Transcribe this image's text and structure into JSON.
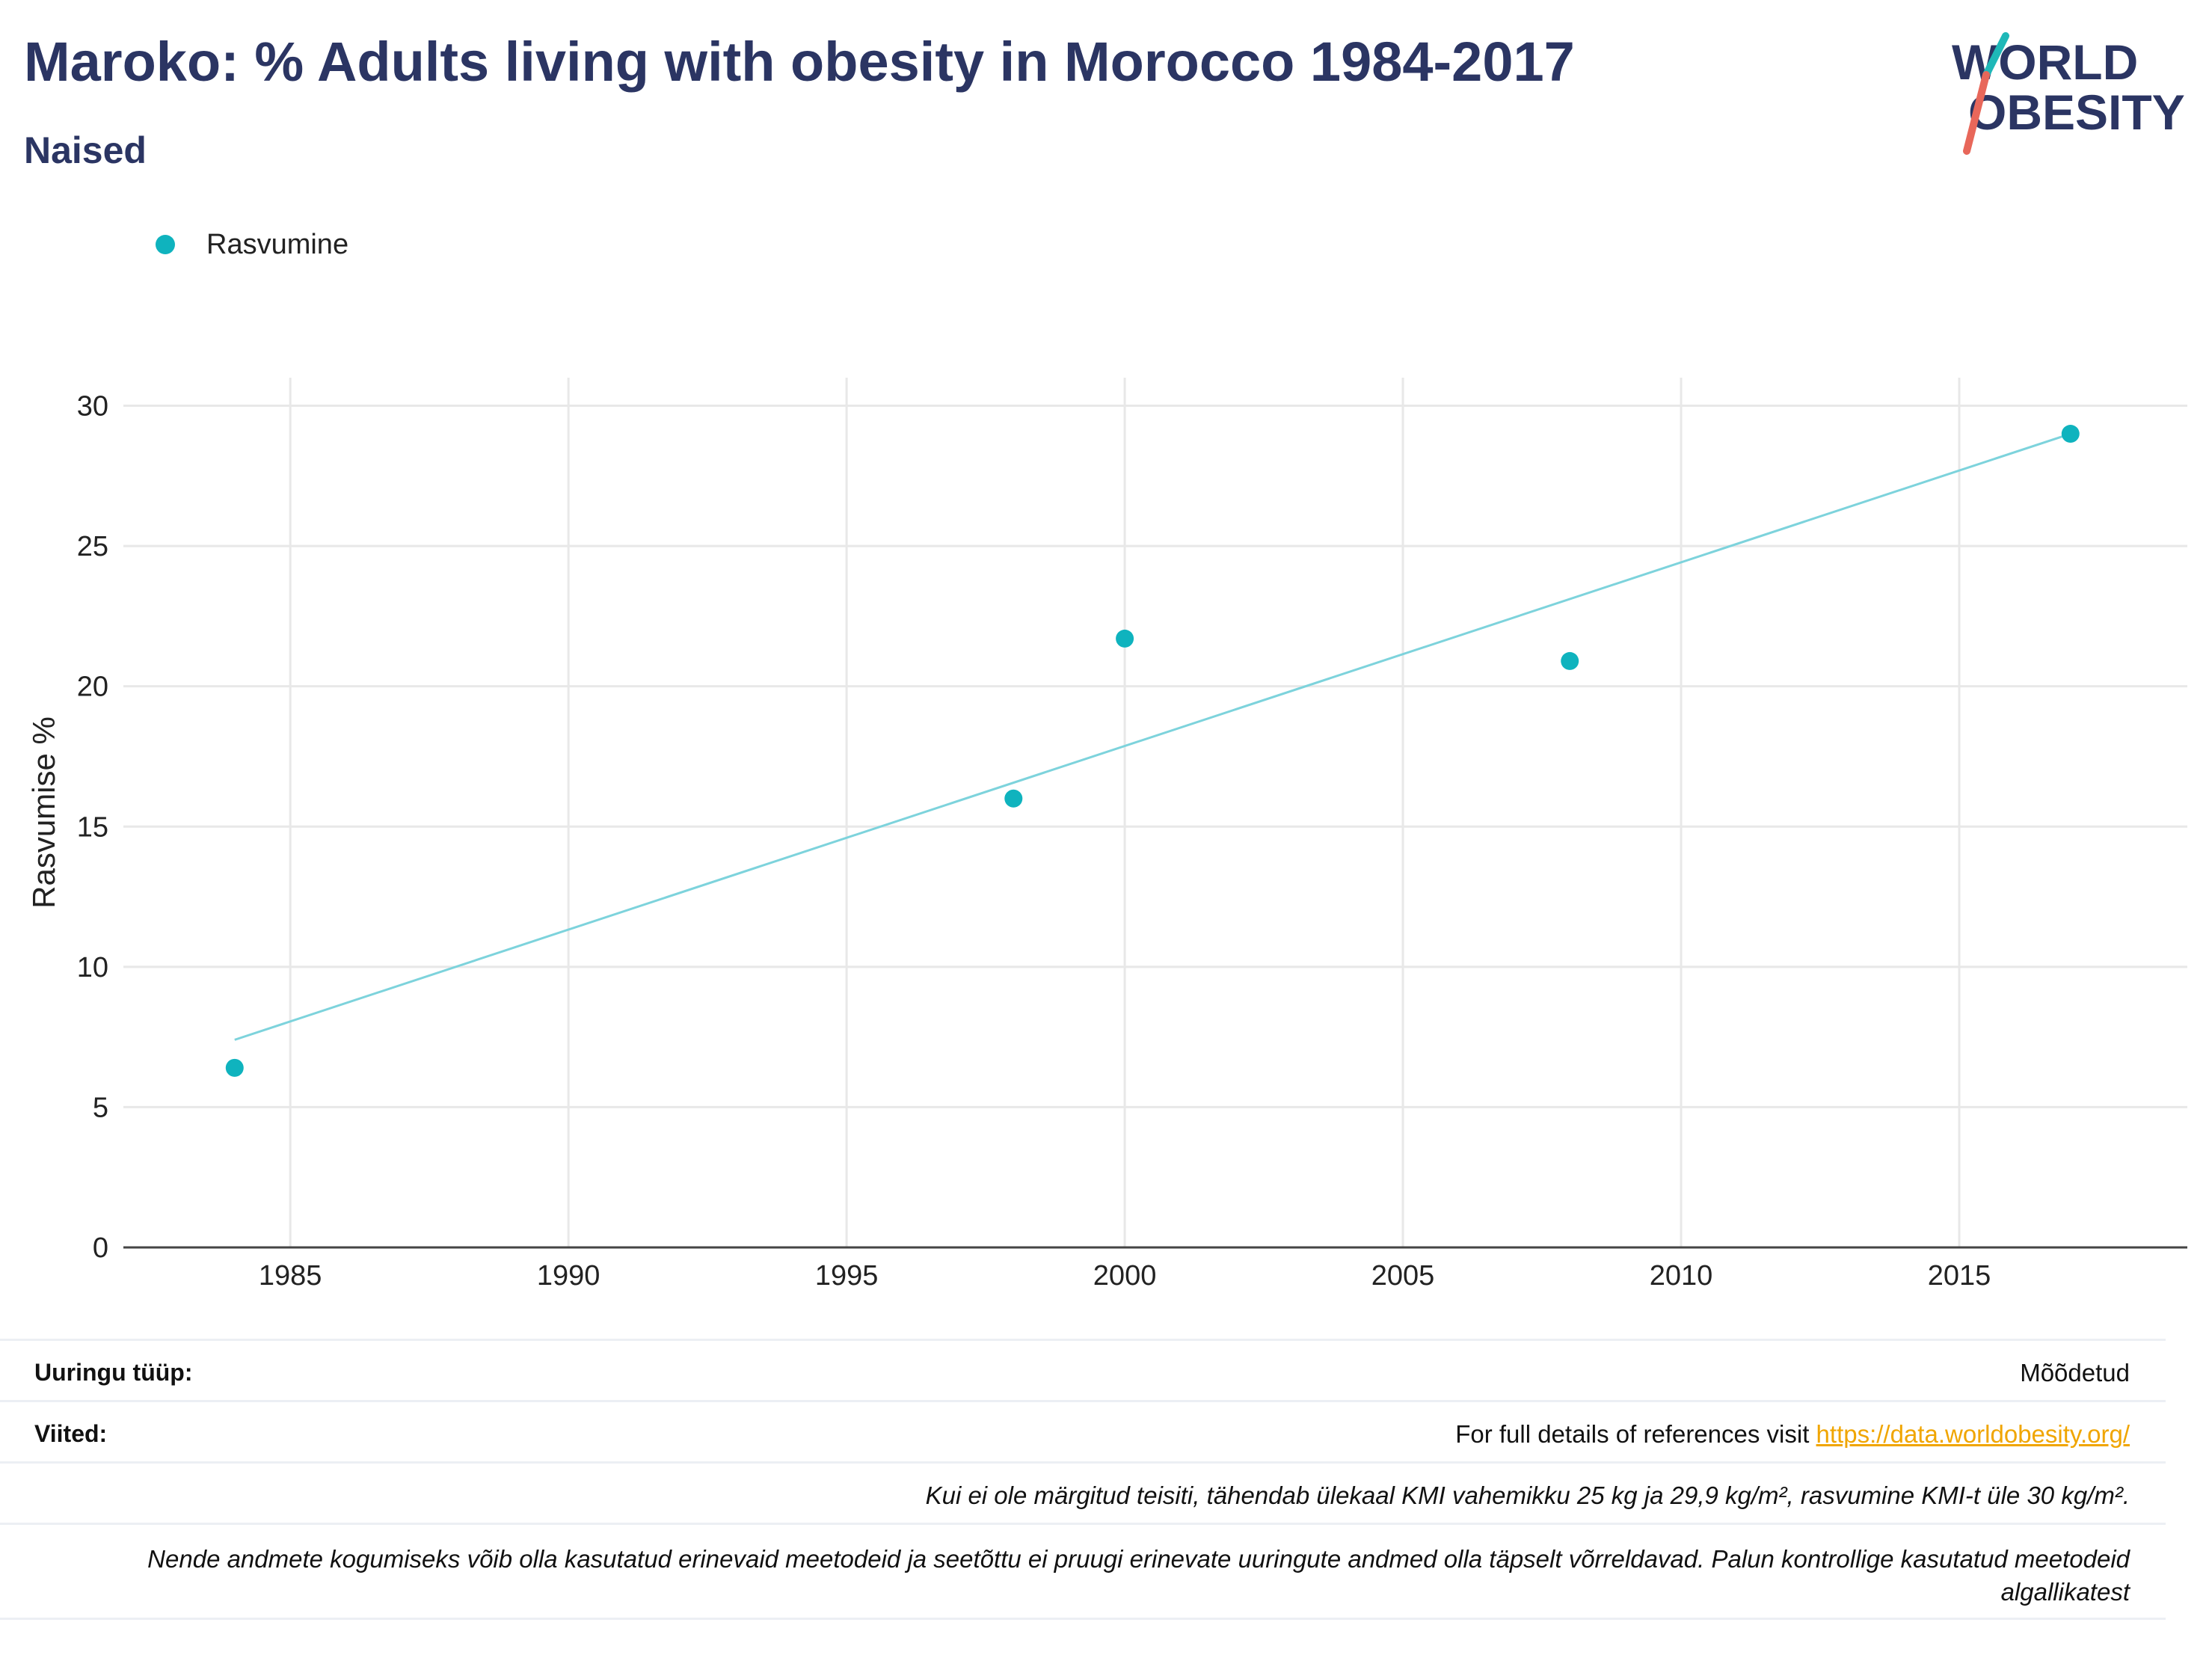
{
  "header": {
    "title": "Maroko: % Adults living with obesity in Morocco 1984-2017",
    "subtitle": "Naised"
  },
  "logo": {
    "line1": "WORLD",
    "line2": "OBESITY",
    "colors": {
      "text": "#2b3563",
      "slash_top": "#1fb8b8",
      "slash_bottom": "#e8675a"
    }
  },
  "legend": {
    "label": "Rasvumine"
  },
  "colors": {
    "points": "#0fb3be",
    "trend": "#7dd3dc",
    "grid": "#e8e8e8",
    "axis": "#444444"
  },
  "chart_data": {
    "type": "scatter",
    "series": [
      {
        "name": "Rasvumine",
        "x": [
          1984,
          1998,
          2000,
          2008,
          2017
        ],
        "y": [
          6.4,
          16.0,
          21.7,
          20.9,
          29.0
        ]
      }
    ],
    "trendline": {
      "x": [
        1984,
        2017
      ],
      "y": [
        7.4,
        29.0
      ]
    },
    "ylabel": "Rasvumise %",
    "xlabel": "",
    "xlim": [
      1982,
      2019.1
    ],
    "ylim": [
      0,
      31
    ],
    "x_ticks": [
      1985,
      1990,
      1995,
      2000,
      2005,
      2010,
      2015
    ],
    "y_ticks": [
      0,
      5,
      10,
      15,
      20,
      25,
      30
    ],
    "grid": true,
    "legend_position": "top-left"
  },
  "info": {
    "survey_type_label": "Uuringu tüüp:",
    "survey_type_value": "Mõõdetud",
    "references_label": "Viited:",
    "references_text": "For full details of references visit ",
    "references_link": "https://data.worldobesity.org/",
    "note1": "Kui ei ole märgitud teisiti, tähendab ülekaal KMI vahemikku 25 kg ja 29,9 kg/m², rasvumine KMI-t üle 30 kg/m².",
    "note2_line1": "Nende andmete kogumiseks võib olla kasutatud erinevaid meetodeid ja seetõttu ei pruugi erinevate uuringute andmed olla täpselt võrreldavad. Palun kontrollige kasutatud meetodeid",
    "note2_line2": "algallikatest"
  }
}
